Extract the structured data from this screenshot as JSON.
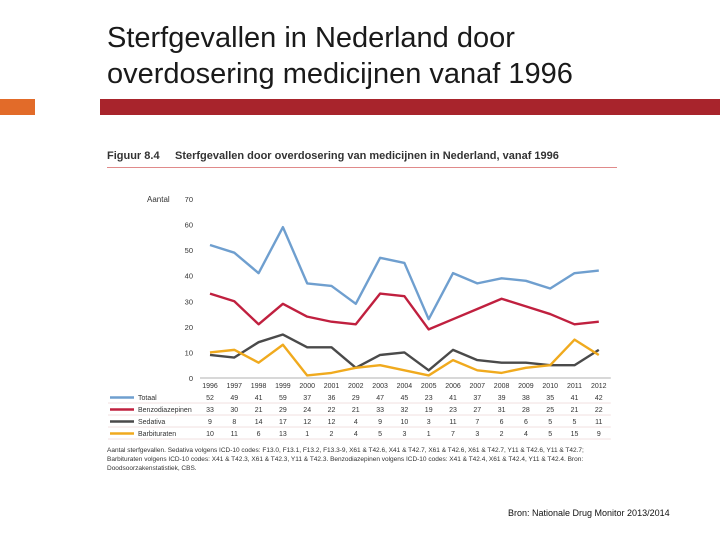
{
  "slide": {
    "title_line1": "Sterfgevallen in Nederland door",
    "title_line2": "overdosering medicijnen vanaf 1996",
    "accent_color": "#e26b29",
    "rule_color": "#a8242c"
  },
  "figure": {
    "label": "Figuur 8.4",
    "title": "Sterfgevallen door overdosering van medicijnen in Nederland, vanaf 1996",
    "footnote": "Aantal sterfgevallen. Sedativa volgens ICD-10 codes: F13.0, F13.1, F13.2, F13.3-9, X61 & T42.6, X41 & T42.7, X61 & T42.6, X61 & T42.7, Y11 & T42.6, Y11 & T42.7; Barbituraten volgens ICD-10 codes: X41 & T42.3, X61 & T42.3, Y11 & T42.3. Benzodiazepinen volgens ICD-10 codes: X41 & T42.4, X61 & T42.4, Y11 & T42.4. Bron: Doodsoorzakenstatistiek, CBS."
  },
  "source": "Bron: Nationale Drug Monitor 2013/2014",
  "chart_data": {
    "type": "line",
    "title": "Sterfgevallen door overdosering van medicijnen in Nederland, vanaf 1996",
    "ylabel": "Aantal",
    "xlabel": "",
    "ylim": [
      0,
      70
    ],
    "yticks": [
      "0",
      "10",
      "20",
      "30",
      "40",
      "50",
      "60",
      "70"
    ],
    "categories": [
      "1996",
      "1997",
      "1998",
      "1999",
      "2000",
      "2001",
      "2002",
      "2003",
      "2004",
      "2005",
      "2006",
      "2007",
      "2008",
      "2009",
      "2010",
      "2011",
      "2012"
    ],
    "series": [
      {
        "name": "Totaal",
        "color": "#6f9fcf",
        "values": [
          52,
          49,
          41,
          59,
          37,
          36,
          29,
          47,
          45,
          23,
          41,
          37,
          39,
          38,
          35,
          41,
          42
        ]
      },
      {
        "name": "Benzodiazepinen",
        "color": "#c0203f",
        "values": [
          33,
          30,
          21,
          29,
          24,
          22,
          21,
          33,
          32,
          19,
          23,
          27,
          31,
          28,
          25,
          21,
          22
        ]
      },
      {
        "name": "Sedativa",
        "color": "#4a4a4a",
        "values": [
          9,
          8,
          14,
          17,
          12,
          12,
          4,
          9,
          10,
          3,
          11,
          7,
          6,
          6,
          5,
          5,
          11
        ]
      },
      {
        "name": "Barbituraten",
        "color": "#f0aa1e",
        "values": [
          10,
          11,
          6,
          13,
          1,
          2,
          4,
          5,
          3,
          1,
          7,
          3,
          2,
          4,
          5,
          15,
          9
        ]
      }
    ],
    "table_rows": [
      {
        "name": "Totaal",
        "values": [
          "52",
          "49",
          "41",
          "59",
          "37",
          "36",
          "29",
          "47",
          "45",
          "23",
          "41",
          "37",
          "39",
          "38",
          "35",
          "41",
          "42"
        ]
      },
      {
        "name": "Benzodiazepinen",
        "values": [
          "33",
          "30",
          "21",
          "29",
          "24",
          "22",
          "21",
          "33",
          "32",
          "19",
          "23",
          "27",
          "31",
          "28",
          "25",
          "21",
          "22"
        ]
      },
      {
        "name": "Sedativa",
        "values": [
          "9",
          "8",
          "14",
          "17",
          "12",
          "12",
          "4",
          "9",
          "10",
          "3",
          "11",
          "7",
          "6",
          "6",
          "5",
          "5",
          "11"
        ]
      },
      {
        "name": "Barbituraten",
        "values": [
          "10",
          "11",
          "6",
          "13",
          "1",
          "2",
          "4",
          "5",
          "3",
          "1",
          "7",
          "3",
          "2",
          "4",
          "5",
          "15",
          "9"
        ]
      }
    ],
    "legend": "table-left"
  }
}
